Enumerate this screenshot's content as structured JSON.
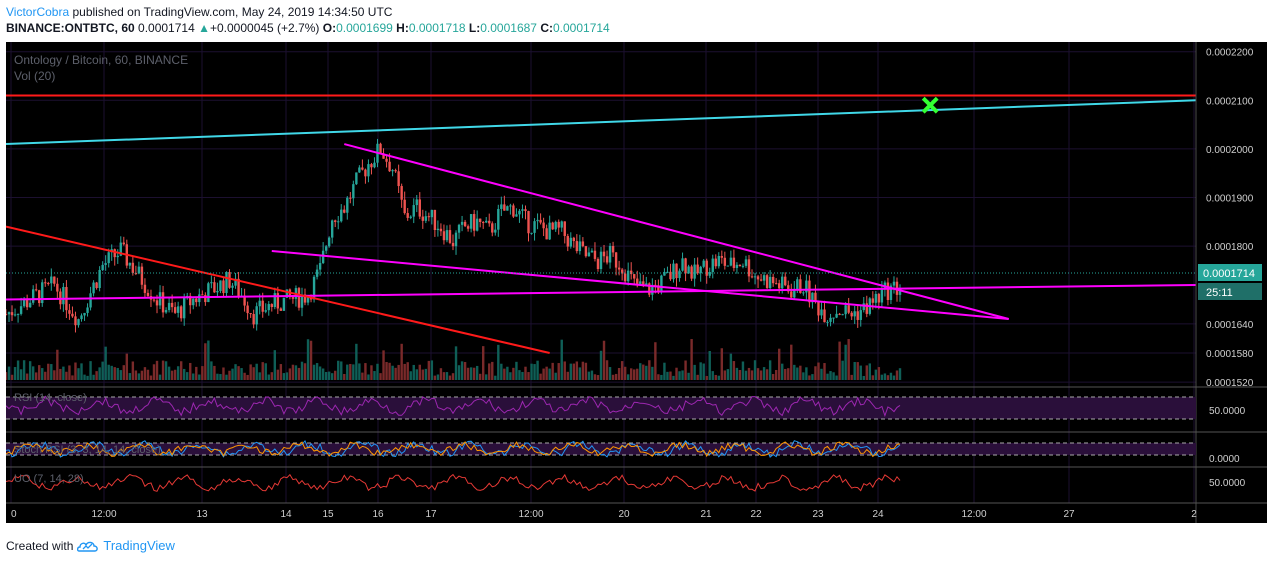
{
  "header": {
    "user": "VictorCobra",
    "published": " published on TradingView.com, May 24, 2019 14:34:50 UTC",
    "symbol": "BINANCE:ONTBTC, 60",
    "price": "0.0001714",
    "change_arrow": "▲",
    "change": "+0.0000045 (+2.7%)",
    "o_label": "O:",
    "o_value": "0.0001699",
    "h_label": "H:",
    "h_value": "0.0001718",
    "l_label": "L:",
    "l_value": "0.0001687",
    "c_label": "C:",
    "c_value": "0.0001714"
  },
  "chart": {
    "title": "Ontology / Bitcoin, 60, BINANCE",
    "vol_label": "Vol (20)",
    "rsi_label": "RSI (14, close)",
    "stoch_label": "Stoch RSI (3, 3, 14, 14, close)",
    "uo_label": "UO (7, 14, 28)",
    "current_price_tag": "0.0001714",
    "countdown_tag": "25:11",
    "rsi_tick": "50.0000",
    "stoch_tick": "0.0000",
    "uo_tick": "50.0000"
  },
  "colors": {
    "background": "#000000",
    "up": "#26a69a",
    "down": "#ef5350",
    "magenta": "#ff00ff",
    "cyan": "#40d8e8",
    "red_line": "#ff1a1a",
    "green_x": "#33ff33",
    "price_tag": "#26a69a",
    "grid": "#1c1030"
  },
  "chart_data": {
    "type": "candlestick",
    "ylim": [
      0.000151,
      0.000222
    ],
    "y_ticks": [
      "0.0002200",
      "0.0002100",
      "0.0002000",
      "0.0001900",
      "0.0001800",
      "0.0001640",
      "0.0001580",
      "0.0001520"
    ],
    "x_ticks": [
      "0",
      "12:00",
      "13",
      "14",
      "15",
      "16",
      "17",
      "12:00",
      "20",
      "21",
      "22",
      "23",
      "24",
      "12:00",
      "27",
      "2"
    ],
    "close_path": [
      [
        0,
        0.000166
      ],
      [
        4,
        0.000169
      ],
      [
        8,
        0.000172
      ],
      [
        12,
        0.000165
      ],
      [
        16,
        0.000176
      ],
      [
        19,
        0.000179
      ],
      [
        22,
        0.000174
      ],
      [
        25,
        0.000169
      ],
      [
        28,
        0.000166
      ],
      [
        31,
        0.000169
      ],
      [
        34,
        0.000171
      ],
      [
        37,
        0.000173
      ],
      [
        39,
        0.00017
      ],
      [
        41,
        0.000166
      ],
      [
        44,
        0.000168
      ],
      [
        47,
        0.000169
      ],
      [
        50,
        0.00017
      ],
      [
        52,
        0.000175
      ],
      [
        54,
        0.000186
      ],
      [
        56,
        0.000188
      ],
      [
        58,
        0.000193
      ],
      [
        60,
        0.000197
      ],
      [
        62,
        0.0002
      ],
      [
        64,
        0.000196
      ],
      [
        66,
        0.000186
      ],
      [
        68,
        0.000188
      ],
      [
        70,
        0.000186
      ],
      [
        72,
        0.000184
      ],
      [
        74,
        0.000181
      ],
      [
        76,
        0.000184
      ],
      [
        78,
        0.000185
      ],
      [
        80,
        0.000183
      ],
      [
        82,
        0.000187
      ],
      [
        84,
        0.000188
      ],
      [
        86,
        0.000185
      ],
      [
        88,
        0.000184
      ],
      [
        90,
        0.000183
      ],
      [
        92,
        0.000183
      ],
      [
        94,
        0.00018
      ],
      [
        96,
        0.000178
      ],
      [
        98,
        0.000177
      ],
      [
        100,
        0.000178
      ],
      [
        102,
        0.000176
      ],
      [
        104,
        0.000172
      ],
      [
        106,
        0.000171
      ],
      [
        108,
        0.000172
      ],
      [
        110,
        0.000174
      ],
      [
        112,
        0.000177
      ],
      [
        114,
        0.000174
      ],
      [
        116,
        0.000176
      ],
      [
        118,
        0.000177
      ],
      [
        120,
        0.000176
      ],
      [
        122,
        0.000177
      ],
      [
        124,
        0.000174
      ],
      [
        126,
        0.000173
      ],
      [
        128,
        0.000172
      ],
      [
        130,
        0.000171
      ],
      [
        132,
        0.000172
      ],
      [
        134,
        0.000168
      ],
      [
        136,
        0.000166
      ],
      [
        138,
        0.000167
      ],
      [
        140,
        0.000166
      ],
      [
        142,
        0.000167
      ],
      [
        144,
        0.000169
      ],
      [
        146,
        0.000171
      ],
      [
        148,
        0.0001714
      ]
    ],
    "trend_lines": [
      {
        "color": "magenta",
        "from": [
          56,
          0.000201
        ],
        "to": [
          166,
          0.000165
        ]
      },
      {
        "color": "magenta",
        "from": [
          44,
          0.000179
        ],
        "to": [
          166,
          0.000165
        ]
      },
      {
        "color": "magenta",
        "from": [
          0,
          0.000169
        ],
        "to": [
          197,
          0.000172
        ]
      },
      {
        "color": "cyan",
        "from": [
          0,
          0.000201
        ],
        "to": [
          197,
          0.00021
        ]
      },
      {
        "color": "red_line",
        "from": [
          0,
          0.000211
        ],
        "to": [
          197,
          0.000211
        ]
      },
      {
        "color": "red_line",
        "from": [
          0,
          0.000184
        ],
        "to": [
          90,
          0.000158
        ]
      }
    ],
    "target_marker": [
      153,
      0.000209
    ]
  }
}
